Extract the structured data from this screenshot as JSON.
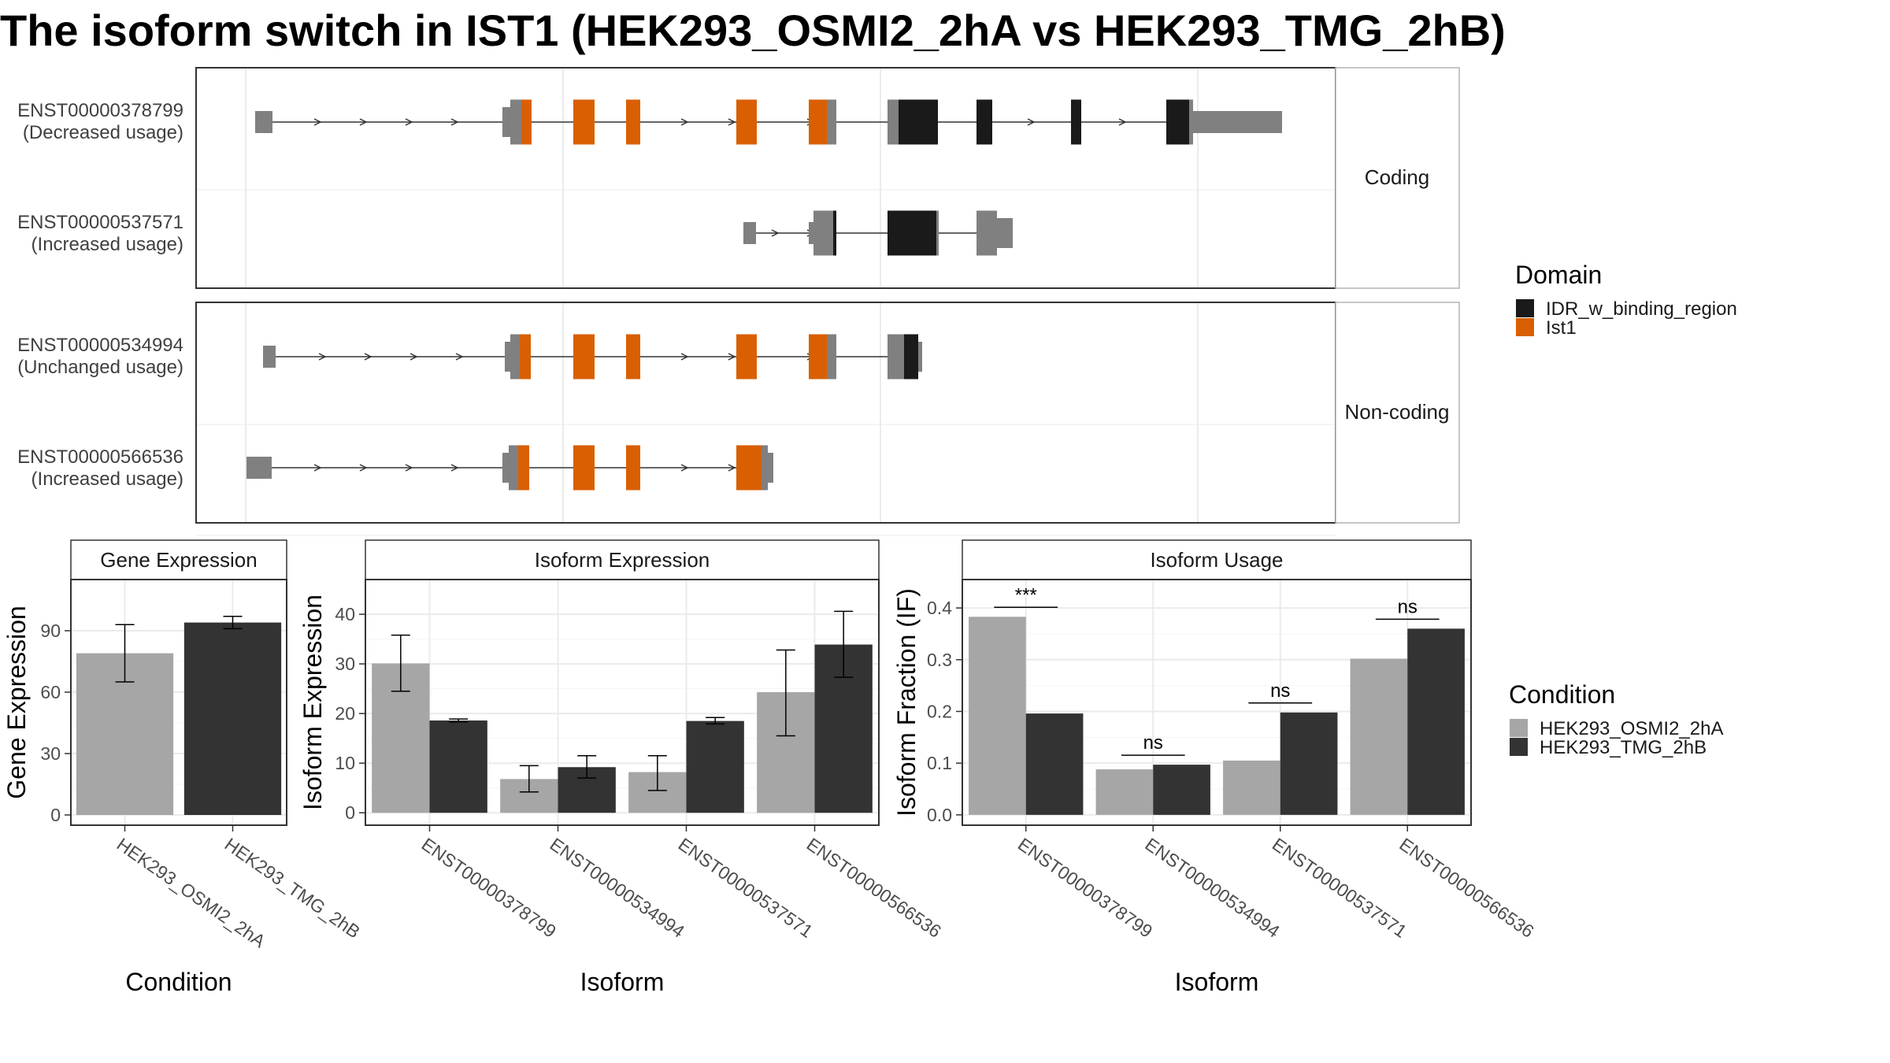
{
  "title": "The isoform switch in IST1 (HEK293_OSMI2_2hA vs HEK293_TMG_2hB)",
  "colors": {
    "idr": "#1a1a1a",
    "ist1": "#d95f02",
    "noncoding_exon": "#808080",
    "cond_a": "#a6a6a6",
    "cond_b": "#333333",
    "grid": "#ebebeb"
  },
  "structure": {
    "facets": [
      {
        "label": "Coding",
        "transcripts": [
          {
            "id": "ENST00000378799",
            "usage": "(Decreased usage)"
          },
          {
            "id": "ENST00000537571",
            "usage": "(Increased usage)"
          }
        ]
      },
      {
        "label": "Non-coding",
        "transcripts": [
          {
            "id": "ENST00000534994",
            "usage": "(Unchanged usage)"
          },
          {
            "id": "ENST00000566536",
            "usage": "(Increased usage)"
          }
        ]
      }
    ]
  },
  "legend_domain": {
    "title": "Domain",
    "items": [
      {
        "label": "IDR_w_binding_region",
        "color": "#1a1a1a"
      },
      {
        "label": "Ist1",
        "color": "#d95f02"
      }
    ]
  },
  "legend_condition": {
    "title": "Condition",
    "items": [
      {
        "label": "HEK293_OSMI2_2hA",
        "color": "#a6a6a6"
      },
      {
        "label": "HEK293_TMG_2hB",
        "color": "#333333"
      }
    ]
  },
  "chart_data": [
    {
      "type": "bar",
      "strip": "Gene Expression",
      "ylabel": "Gene Expression",
      "xlabel": "Condition",
      "ylim": [
        -5,
        115
      ],
      "yticks": [
        0,
        30,
        60,
        90
      ],
      "categories": [
        "HEK293_OSMI2_2hA",
        "HEK293_TMG_2hB"
      ],
      "values": [
        79,
        94
      ],
      "errors": [
        [
          65,
          93
        ],
        [
          91,
          97
        ]
      ]
    },
    {
      "type": "bar",
      "strip": "Isoform Expression",
      "ylabel": "Isoform Expression",
      "xlabel": "Isoform",
      "ylim": [
        -2.5,
        47
      ],
      "yticks": [
        0,
        10,
        20,
        30,
        40
      ],
      "categories": [
        "ENST00000378799",
        "ENST00000534994",
        "ENST00000537571",
        "ENST00000566536"
      ],
      "series": [
        {
          "name": "HEK293_OSMI2_2hA",
          "values": [
            30.1,
            6.8,
            8.2,
            24.3
          ],
          "errors": [
            [
              24.5,
              35.8
            ],
            [
              4.2,
              9.5
            ],
            [
              4.5,
              11.5
            ],
            [
              15.5,
              32.8
            ]
          ]
        },
        {
          "name": "HEK293_TMG_2hB",
          "values": [
            18.6,
            9.2,
            18.5,
            33.9
          ],
          "errors": [
            [
              18.3,
              18.9
            ],
            [
              7.0,
              11.5
            ],
            [
              17.9,
              19.2
            ],
            [
              27.3,
              40.6
            ]
          ]
        }
      ]
    },
    {
      "type": "bar",
      "strip": "Isoform Usage",
      "ylabel": "Isoform Fraction (IF)",
      "xlabel": "Isoform",
      "ylim": [
        -0.02,
        0.455
      ],
      "yticks": [
        "0.0",
        "0.1",
        "0.2",
        "0.3",
        "0.4"
      ],
      "categories": [
        "ENST00000378799",
        "ENST00000534994",
        "ENST00000537571",
        "ENST00000566536"
      ],
      "series": [
        {
          "name": "HEK293_OSMI2_2hA",
          "values": [
            0.383,
            0.088,
            0.105,
            0.302
          ]
        },
        {
          "name": "HEK293_TMG_2hB",
          "values": [
            0.196,
            0.097,
            0.198,
            0.36
          ]
        }
      ],
      "significance": [
        "***",
        "ns",
        "ns",
        "ns"
      ]
    }
  ]
}
